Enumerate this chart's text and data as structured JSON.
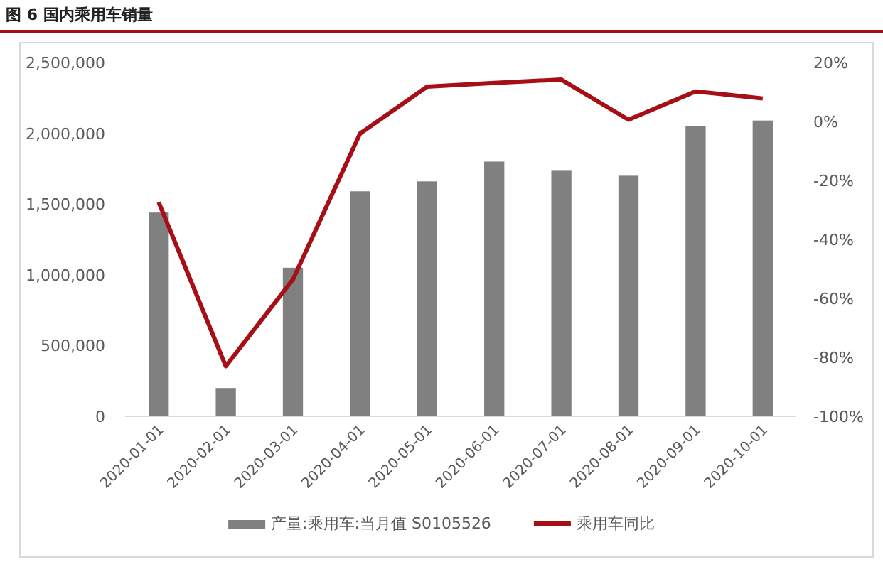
{
  "chart_data": {
    "type": "bar",
    "title": "图 6 国内乘用车销量",
    "categories": [
      "2020-01-01",
      "2020-02-01",
      "2020-03-01",
      "2020-04-01",
      "2020-05-01",
      "2020-06-01",
      "2020-07-01",
      "2020-08-01",
      "2020-09-01",
      "2020-10-01"
    ],
    "series": [
      {
        "name": "产量:乘用车:当月值 S0105526",
        "color": "#808080",
        "values": [
          1440000,
          200000,
          1050000,
          1590000,
          1660000,
          1800000,
          1740000,
          1700000,
          2050000,
          2090000
        ]
      },
      {
        "name": "乘用车同比",
        "type": "line",
        "axis": "y2",
        "color": "#a50f15",
        "values": [
          -27.4,
          -83,
          -53.6,
          -4.1,
          11.8,
          13.1,
          14.2,
          0.6,
          10.2,
          7.8
        ]
      }
    ],
    "ylim": [
      0,
      2500000
    ],
    "yticks": [
      {
        "value": 0,
        "label": "0"
      },
      {
        "value": 500000,
        "label": "500,000"
      },
      {
        "value": 1000000,
        "label": "1,000,000"
      },
      {
        "value": 1500000,
        "label": "1,500,000"
      },
      {
        "value": 2000000,
        "label": "2,000,000"
      },
      {
        "value": 2500000,
        "label": "2,500,000"
      }
    ],
    "y2lim": [
      -100,
      20
    ],
    "y2ticks": [
      {
        "value": -100,
        "label": "-100%"
      },
      {
        "value": -80,
        "label": "-80%"
      },
      {
        "value": -60,
        "label": "-60%"
      },
      {
        "value": -40,
        "label": "-40%"
      },
      {
        "value": -20,
        "label": "-20%"
      },
      {
        "value": 0,
        "label": "0%"
      },
      {
        "value": 20,
        "label": "20%"
      }
    ],
    "legend": "bottom",
    "grid": false,
    "marker": "none"
  }
}
